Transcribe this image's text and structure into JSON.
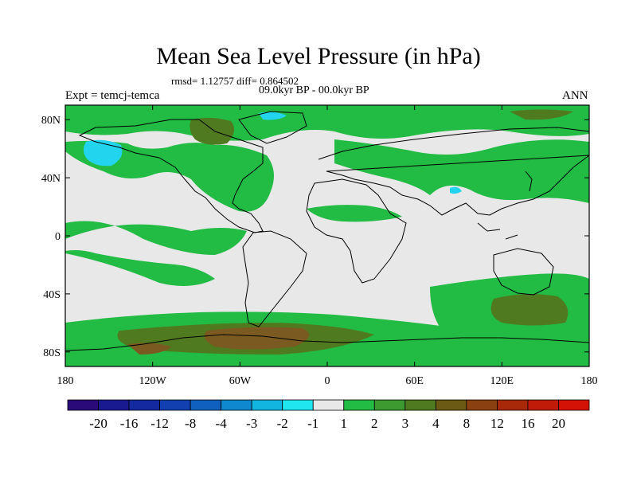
{
  "title": "Mean Sea Level Pressure (in hPa)",
  "stats": "rmsd= 1.12757 diff= 0.864502",
  "period": "09.0kyr BP - 00.0kyr BP",
  "experiment": "Expt = temcj-temca",
  "season": "ANN",
  "map": {
    "lat_labels": [
      "80N",
      "40N",
      "0",
      "40S",
      "80S"
    ],
    "lat_values": [
      80,
      40,
      0,
      -40,
      -80
    ],
    "lon_labels": [
      "180",
      "120W",
      "60W",
      "0",
      "60E",
      "120E",
      "180"
    ],
    "lon_values": [
      -180,
      -120,
      -60,
      0,
      60,
      120,
      180
    ],
    "lat_range": [
      -90,
      90
    ],
    "lon_range": [
      -180,
      180
    ]
  },
  "colorbar": {
    "labels": [
      "-20",
      "-16",
      "-12",
      "-8",
      "-4",
      "-3",
      "-2",
      "-1",
      "1",
      "2",
      "3",
      "4",
      "8",
      "12",
      "16",
      "20"
    ],
    "colors": [
      "#2a0a78",
      "#1a1a90",
      "#1428a0",
      "#1240b0",
      "#1060c0",
      "#1088d0",
      "#12b4e0",
      "#20e6f0",
      "#e8e8e8",
      "#22bb44",
      "#3c9a30",
      "#4f7a20",
      "#6a5a14",
      "#8a4010",
      "#a8280a",
      "#c01a08",
      "#d41206"
    ]
  },
  "palette": {
    "neutral": "#e8e8e8",
    "green": "#22bb44",
    "olive": "#4f7a20",
    "brown": "#7a5a20",
    "cyan": "#22d4ee",
    "coast": "#000000"
  }
}
